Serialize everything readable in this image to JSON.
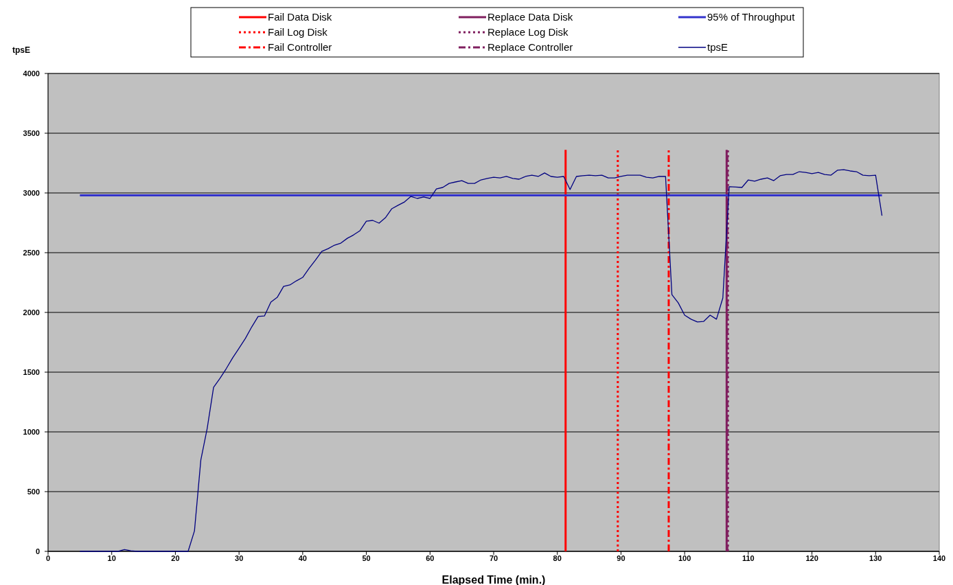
{
  "chart_data": {
    "type": "line",
    "xlabel": "Elapsed Time (min.)",
    "ylabel": "tpsE",
    "xlim": [
      0,
      140
    ],
    "xticks": [
      0,
      10,
      20,
      30,
      40,
      50,
      60,
      70,
      80,
      90,
      100,
      110,
      120,
      130,
      140
    ],
    "ylim": [
      0,
      4000
    ],
    "yticks": [
      0,
      500,
      1000,
      1500,
      2000,
      2500,
      3000,
      3500,
      4000
    ],
    "grid": "y",
    "legend": "top",
    "series": [
      {
        "name": "95% of Throughput",
        "color": "#3333cc",
        "x": [
          5,
          131
        ],
        "values": [
          2980,
          2980
        ]
      },
      {
        "name": "tpsE",
        "color": "#000080",
        "x": [
          5,
          6,
          7,
          8,
          9,
          10,
          11,
          12,
          13,
          14,
          15,
          16,
          17,
          18,
          19,
          20,
          21,
          22,
          23,
          24,
          25,
          26,
          27,
          28,
          29,
          30,
          31,
          32,
          33,
          34,
          35,
          36,
          37,
          38,
          39,
          40,
          41,
          42,
          43,
          44,
          45,
          46,
          47,
          48,
          49,
          50,
          51,
          52,
          53,
          54,
          55,
          56,
          57,
          58,
          59,
          60,
          61,
          62,
          63,
          64,
          65,
          66,
          67,
          68,
          69,
          70,
          71,
          72,
          73,
          74,
          75,
          76,
          77,
          78,
          79,
          80,
          81,
          82,
          83,
          84,
          85,
          86,
          87,
          88,
          89,
          90,
          91,
          92,
          93,
          94,
          95,
          96,
          97,
          98,
          99,
          100,
          101,
          102,
          103,
          104,
          105,
          106,
          107,
          108,
          109,
          110,
          111,
          112,
          113,
          114,
          115,
          116,
          117,
          118,
          119,
          120,
          121,
          122,
          123,
          124,
          125,
          126,
          127,
          128,
          129,
          130,
          131
        ],
        "values": [
          0,
          0,
          0,
          0,
          0,
          0,
          0,
          15,
          5,
          0,
          0,
          0,
          0,
          0,
          0,
          0,
          0,
          0,
          172,
          765,
          1030,
          1373,
          1448,
          1530,
          1620,
          1700,
          1782,
          1879,
          1966,
          1971,
          2086,
          2126,
          2218,
          2230,
          2264,
          2293,
          2368,
          2437,
          2511,
          2534,
          2563,
          2580,
          2620,
          2649,
          2684,
          2764,
          2770,
          2747,
          2793,
          2868,
          2897,
          2925,
          2971,
          2954,
          2966,
          2954,
          3034,
          3046,
          3080,
          3092,
          3103,
          3080,
          3080,
          3109,
          3121,
          3132,
          3126,
          3138,
          3121,
          3115,
          3138,
          3149,
          3138,
          3167,
          3138,
          3132,
          3138,
          3029,
          3138,
          3144,
          3149,
          3144,
          3149,
          3126,
          3126,
          3138,
          3149,
          3149,
          3149,
          3132,
          3126,
          3138,
          3138,
          2149,
          2080,
          1977,
          1943,
          1920,
          1925,
          1977,
          1943,
          2121,
          3052,
          3050,
          3046,
          3109,
          3098,
          3115,
          3126,
          3103,
          3144,
          3155,
          3155,
          3178,
          3172,
          3161,
          3172,
          3155,
          3149,
          3190,
          3195,
          3184,
          3178,
          3149,
          3144,
          3149,
          2810
        ]
      }
    ],
    "ref_lines": [
      {
        "axis": "x",
        "value": 81.3,
        "label": "Fail Data Disk",
        "color": "#ff0000",
        "line_style": "solid"
      },
      {
        "axis": "x",
        "value": 89.5,
        "label": "Fail Log Disk",
        "color": "#ff0000",
        "line_style": "dotted"
      },
      {
        "axis": "x",
        "value": 97.5,
        "label": "Fail Controller",
        "color": "#ff0000",
        "line_style": "dashed"
      },
      {
        "axis": "x",
        "value": 106.6,
        "label": "Replace Data Disk",
        "color": "#801f5f",
        "line_style": "solid"
      },
      {
        "axis": "x",
        "value": 106.8,
        "label": "Replace Log Disk",
        "color": "#801f5f",
        "line_style": "dotted"
      },
      {
        "axis": "x",
        "value": 106.7,
        "label": "Replace Controller",
        "color": "#801f5f",
        "line_style": "dashed"
      }
    ]
  }
}
